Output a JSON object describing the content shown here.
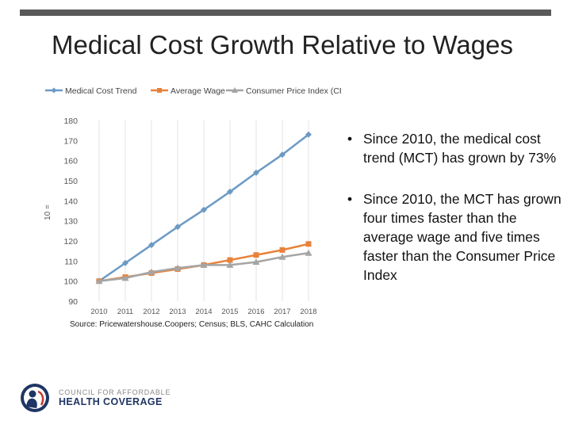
{
  "slide": {
    "title": "Medical Cost Growth Relative to Wages"
  },
  "chart_data": {
    "type": "line",
    "categories": [
      "2010",
      "2011",
      "2012",
      "2013",
      "2014",
      "2015",
      "2016",
      "2017",
      "2018"
    ],
    "series": [
      {
        "name": "Medical Cost Trend",
        "color": "#6b9ac4",
        "marker": "diamond",
        "values": [
          100,
          109,
          118,
          127,
          135.5,
          144.5,
          154,
          163,
          173
        ]
      },
      {
        "name": "Average Wage",
        "color": "#e8823a",
        "marker": "square",
        "values": [
          100,
          102,
          104,
          106,
          108,
          110.5,
          113,
          115.5,
          118.5
        ]
      },
      {
        "name": "Consumer Price Index (CPI-U)",
        "color": "#a5a5a5",
        "marker": "triangle",
        "values": [
          100,
          101.5,
          104.5,
          106.5,
          108,
          108,
          109.5,
          112,
          114
        ]
      }
    ],
    "ylim": [
      90,
      180
    ],
    "yticks": [
      90,
      100,
      110,
      120,
      130,
      140,
      150,
      160,
      170,
      180
    ],
    "ylabel": "10 =",
    "xlabel": "",
    "grid": {
      "vertical": true,
      "horizontal": false
    },
    "legend_position": "top"
  },
  "source": "Source: Pricewatershouse.Coopers; Census; BLS, CAHC Calculation",
  "bullets": [
    {
      "marker": "•",
      "text": "Since 2010, the medical cost trend (MCT) has grown by 73%"
    },
    {
      "marker": "•",
      "text": "Since 2010, the MCT has grown four times faster than the average wage and five times faster than the Consumer Price Index"
    }
  ],
  "logo": {
    "line1": "COUNCIL FOR AFFORDABLE",
    "line2": "HEALTH COVERAGE"
  }
}
